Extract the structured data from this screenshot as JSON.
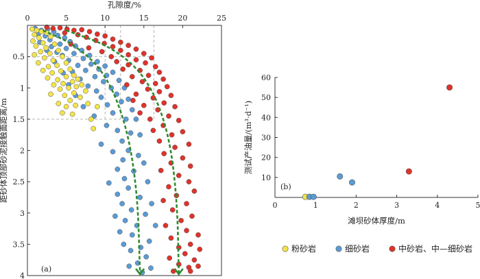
{
  "chart_data": [
    {
      "panel_label": "(a)",
      "type": "scatter",
      "xlabel": "孔隙度/%",
      "ylabel": "距砂体顶部砂泥接触面距离/m",
      "xlim": [
        0,
        25
      ],
      "ylim": [
        0,
        4
      ],
      "x_axis_position": "top",
      "y_inverted": true,
      "xticks": [
        "0",
        "5",
        "10",
        "15",
        "20",
        "25"
      ],
      "yticks": [
        "0.5",
        "1",
        "1.5",
        "2",
        "2.5",
        "3",
        "3.5",
        "4"
      ],
      "guide_lines": {
        "horizontal_at_y": [
          0.5,
          1.5
        ],
        "vertical_at_x": [
          10,
          12,
          16.3
        ]
      },
      "trend_arrows": [
        {
          "points": [
            [
              2,
              0.08
            ],
            [
              6,
              0.3
            ],
            [
              10,
              0.75
            ],
            [
              12.8,
              1.6
            ],
            [
              14.2,
              2.7
            ],
            [
              14.5,
              4.0
            ]
          ]
        },
        {
          "points": [
            [
              5,
              0.08
            ],
            [
              11,
              0.35
            ],
            [
              15.5,
              0.85
            ],
            [
              18.2,
              1.7
            ],
            [
              19.3,
              2.8
            ],
            [
              19.5,
              4.0
            ]
          ]
        }
      ],
      "series": [
        {
          "name": "粉砂岩",
          "color": "#f2e44a",
          "points": [
            [
              0.6,
              0.06
            ],
            [
              1.2,
              0.08
            ],
            [
              1.8,
              0.1
            ],
            [
              0.9,
              0.15
            ],
            [
              2.5,
              0.12
            ],
            [
              1.5,
              0.2
            ],
            [
              0.7,
              0.25
            ],
            [
              2.0,
              0.28
            ],
            [
              3.0,
              0.18
            ],
            [
              1.1,
              0.33
            ],
            [
              2.4,
              0.36
            ],
            [
              3.5,
              0.3
            ],
            [
              1.7,
              0.42
            ],
            [
              2.9,
              0.45
            ],
            [
              0.9,
              0.47
            ],
            [
              4.0,
              0.4
            ],
            [
              2.2,
              0.52
            ],
            [
              3.3,
              0.56
            ],
            [
              1.4,
              0.6
            ],
            [
              4.5,
              0.5
            ],
            [
              2.7,
              0.66
            ],
            [
              3.8,
              0.64
            ],
            [
              5.0,
              0.6
            ],
            [
              2.0,
              0.72
            ],
            [
              3.2,
              0.76
            ],
            [
              4.3,
              0.73
            ],
            [
              5.5,
              0.7
            ],
            [
              2.6,
              0.84
            ],
            [
              3.9,
              0.87
            ],
            [
              5.0,
              0.82
            ],
            [
              6.0,
              0.8
            ],
            [
              3.4,
              0.95
            ],
            [
              4.6,
              0.93
            ],
            [
              5.8,
              0.9
            ],
            [
              6.5,
              0.86
            ],
            [
              4.2,
              1.02
            ],
            [
              5.3,
              1.0
            ],
            [
              6.3,
              0.98
            ],
            [
              3.0,
              1.1
            ],
            [
              4.8,
              1.12
            ],
            [
              6.0,
              1.08
            ],
            [
              7.0,
              0.95
            ],
            [
              5.5,
              1.2
            ],
            [
              4.0,
              1.25
            ],
            [
              6.8,
              1.15
            ],
            [
              7.5,
              1.05
            ],
            [
              5.0,
              1.3
            ],
            [
              6.2,
              1.28
            ],
            [
              7.8,
              1.25
            ],
            [
              4.5,
              1.4
            ],
            [
              5.8,
              1.42
            ],
            [
              8.2,
              1.5
            ],
            [
              9.0,
              1.3
            ],
            [
              8.5,
              1.65
            ]
          ]
        },
        {
          "name": "细砂岩",
          "color": "#5b9bd5",
          "points": [
            [
              1.0,
              0.05
            ],
            [
              1.8,
              0.08
            ],
            [
              2.6,
              0.06
            ],
            [
              3.4,
              0.1
            ],
            [
              1.4,
              0.14
            ],
            [
              2.3,
              0.17
            ],
            [
              3.9,
              0.16
            ],
            [
              4.8,
              0.2
            ],
            [
              2.9,
              0.23
            ],
            [
              1.6,
              0.27
            ],
            [
              5.5,
              0.26
            ],
            [
              4.2,
              0.3
            ],
            [
              3.1,
              0.34
            ],
            [
              6.2,
              0.33
            ],
            [
              5.0,
              0.37
            ],
            [
              2.5,
              0.4
            ],
            [
              3.8,
              0.43
            ],
            [
              7.0,
              0.4
            ],
            [
              6.0,
              0.45
            ],
            [
              4.5,
              0.48
            ],
            [
              8.0,
              0.48
            ],
            [
              7.2,
              0.53
            ],
            [
              5.3,
              0.56
            ],
            [
              3.5,
              0.58
            ],
            [
              9.0,
              0.58
            ],
            [
              8.2,
              0.62
            ],
            [
              6.5,
              0.64
            ],
            [
              10.0,
              0.65
            ],
            [
              9.2,
              0.7
            ],
            [
              7.5,
              0.72
            ],
            [
              5.8,
              0.74
            ],
            [
              4.6,
              0.76
            ],
            [
              11.0,
              0.75
            ],
            [
              10.2,
              0.8
            ],
            [
              8.7,
              0.82
            ],
            [
              6.8,
              0.86
            ],
            [
              11.8,
              0.88
            ],
            [
              9.8,
              0.9
            ],
            [
              5.3,
              0.95
            ],
            [
              7.8,
              0.97
            ],
            [
              12.5,
              1.0
            ],
            [
              10.8,
              1.0
            ],
            [
              8.9,
              1.05
            ],
            [
              11.5,
              1.1
            ],
            [
              6.2,
              1.12
            ],
            [
              9.5,
              1.15
            ],
            [
              13.0,
              1.18
            ],
            [
              12.1,
              1.22
            ],
            [
              10.3,
              1.27
            ],
            [
              7.2,
              1.3
            ],
            [
              13.5,
              1.35
            ],
            [
              11.0,
              1.4
            ],
            [
              8.6,
              1.45
            ],
            [
              12.7,
              1.5
            ],
            [
              14.0,
              1.5
            ],
            [
              10.2,
              1.6
            ],
            [
              11.6,
              1.68
            ],
            [
              13.3,
              1.72
            ],
            [
              14.5,
              1.75
            ],
            [
              12.2,
              1.85
            ],
            [
              9.5,
              1.9
            ],
            [
              11.0,
              2.02
            ],
            [
              13.0,
              2.0
            ],
            [
              14.3,
              2.08
            ],
            [
              12.3,
              2.15
            ],
            [
              15.0,
              2.2
            ],
            [
              11.6,
              2.3
            ],
            [
              13.7,
              2.33
            ],
            [
              12.5,
              2.45
            ],
            [
              10.5,
              2.52
            ],
            [
              15.5,
              2.5
            ],
            [
              13.0,
              2.6
            ],
            [
              11.6,
              2.7
            ],
            [
              14.5,
              2.75
            ],
            [
              12.2,
              2.85
            ],
            [
              16.0,
              2.85
            ],
            [
              13.4,
              2.95
            ],
            [
              11.3,
              3.05
            ],
            [
              15.2,
              3.02
            ],
            [
              12.6,
              3.12
            ],
            [
              14.1,
              3.2
            ],
            [
              16.5,
              3.2
            ],
            [
              11.9,
              3.3
            ],
            [
              13.5,
              3.35
            ],
            [
              15.7,
              3.45
            ],
            [
              12.4,
              3.5
            ],
            [
              14.6,
              3.55
            ],
            [
              13.3,
              3.6
            ],
            [
              15.3,
              3.7
            ],
            [
              14.2,
              3.8
            ],
            [
              13.1,
              3.85
            ],
            [
              15.9,
              3.88
            ],
            [
              14.8,
              3.95
            ]
          ]
        },
        {
          "name": "中砂岩、中—细砂岩",
          "color": "#e0322b",
          "points": [
            [
              2.5,
              0.03
            ],
            [
              3.3,
              0.05
            ],
            [
              4.2,
              0.04
            ],
            [
              5.1,
              0.06
            ],
            [
              6.0,
              0.08
            ],
            [
              7.0,
              0.07
            ],
            [
              8.0,
              0.1
            ],
            [
              4.8,
              0.12
            ],
            [
              9.0,
              0.14
            ],
            [
              6.5,
              0.15
            ],
            [
              10.0,
              0.17
            ],
            [
              7.6,
              0.19
            ],
            [
              11.0,
              0.22
            ],
            [
              8.8,
              0.24
            ],
            [
              12.0,
              0.27
            ],
            [
              9.9,
              0.29
            ],
            [
              5.6,
              0.3
            ],
            [
              13.0,
              0.32
            ],
            [
              11.0,
              0.34
            ],
            [
              7.9,
              0.36
            ],
            [
              14.0,
              0.38
            ],
            [
              12.0,
              0.4
            ],
            [
              9.6,
              0.42
            ],
            [
              15.0,
              0.45
            ],
            [
              13.0,
              0.47
            ],
            [
              10.8,
              0.5
            ],
            [
              16.0,
              0.52
            ],
            [
              14.0,
              0.55
            ],
            [
              11.5,
              0.58
            ],
            [
              15.2,
              0.6
            ],
            [
              13.0,
              0.63
            ],
            [
              16.5,
              0.66
            ],
            [
              12.3,
              0.7
            ],
            [
              14.5,
              0.72
            ],
            [
              17.0,
              0.75
            ],
            [
              15.6,
              0.8
            ],
            [
              13.5,
              0.82
            ],
            [
              17.5,
              0.86
            ],
            [
              14.8,
              0.9
            ],
            [
              16.5,
              0.93
            ],
            [
              12.8,
              0.95
            ],
            [
              18.0,
              0.98
            ],
            [
              15.5,
              1.02
            ],
            [
              17.0,
              1.06
            ],
            [
              14.0,
              1.1
            ],
            [
              18.5,
              1.12
            ],
            [
              16.2,
              1.16
            ],
            [
              13.6,
              1.2
            ],
            [
              17.6,
              1.24
            ],
            [
              15.0,
              1.28
            ],
            [
              19.0,
              1.3
            ],
            [
              16.8,
              1.35
            ],
            [
              14.5,
              1.4
            ],
            [
              18.2,
              1.45
            ],
            [
              15.8,
              1.5
            ],
            [
              19.5,
              1.52
            ],
            [
              17.5,
              1.6
            ],
            [
              16.2,
              1.68
            ],
            [
              20.0,
              1.7
            ],
            [
              18.6,
              1.75
            ],
            [
              17.0,
              1.85
            ],
            [
              20.8,
              1.9
            ],
            [
              19.0,
              1.95
            ],
            [
              17.6,
              2.05
            ],
            [
              20.0,
              2.12
            ],
            [
              18.5,
              2.2
            ],
            [
              21.0,
              2.25
            ],
            [
              17.2,
              2.32
            ],
            [
              19.5,
              2.4
            ],
            [
              20.8,
              2.5
            ],
            [
              18.2,
              2.58
            ],
            [
              21.5,
              2.65
            ],
            [
              19.2,
              2.72
            ],
            [
              17.5,
              2.8
            ],
            [
              20.5,
              2.85
            ],
            [
              18.7,
              2.95
            ],
            [
              21.2,
              3.05
            ],
            [
              19.8,
              3.12
            ],
            [
              17.8,
              3.2
            ],
            [
              20.5,
              3.28
            ],
            [
              22.0,
              3.35
            ],
            [
              18.5,
              3.4
            ],
            [
              21.0,
              3.5
            ],
            [
              19.5,
              3.55
            ],
            [
              22.2,
              3.58
            ],
            [
              20.3,
              3.65
            ],
            [
              18.3,
              3.72
            ],
            [
              21.5,
              3.75
            ],
            [
              19.5,
              3.82
            ],
            [
              20.8,
              3.87
            ],
            [
              22.0,
              3.85
            ],
            [
              18.8,
              3.93
            ],
            [
              21.0,
              3.93
            ]
          ]
        }
      ]
    },
    {
      "panel_label": "(b)",
      "type": "scatter",
      "xlabel": "滩坝砂体厚度/m",
      "ylabel": "测试产油量/(m³·d⁻¹)",
      "xlim": [
        0,
        5
      ],
      "ylim": [
        0,
        60
      ],
      "xticks": [
        "0",
        "1",
        "2",
        "3",
        "4",
        "5"
      ],
      "yticks": [
        "10",
        "20",
        "30",
        "40",
        "50",
        "60"
      ],
      "series": [
        {
          "name": "粉砂岩",
          "color": "#f2e44a",
          "points": [
            [
              0.75,
              0.3
            ]
          ]
        },
        {
          "name": "细砂岩",
          "color": "#5b9bd5",
          "points": [
            [
              0.85,
              0.3
            ],
            [
              0.95,
              0.3
            ],
            [
              1.6,
              10.5
            ],
            [
              1.9,
              7.5
            ]
          ]
        },
        {
          "name": "中砂岩、中—细砂岩",
          "color": "#e0322b",
          "points": [
            [
              3.3,
              13
            ],
            [
              4.3,
              55
            ]
          ]
        }
      ]
    }
  ],
  "legend": {
    "items": [
      {
        "label": "粉砂岩",
        "color": "#f2e44a"
      },
      {
        "label": "细砂岩",
        "color": "#5b9bd5"
      },
      {
        "label": "中砂岩、中—细砂岩",
        "color": "#e0322b"
      }
    ]
  }
}
